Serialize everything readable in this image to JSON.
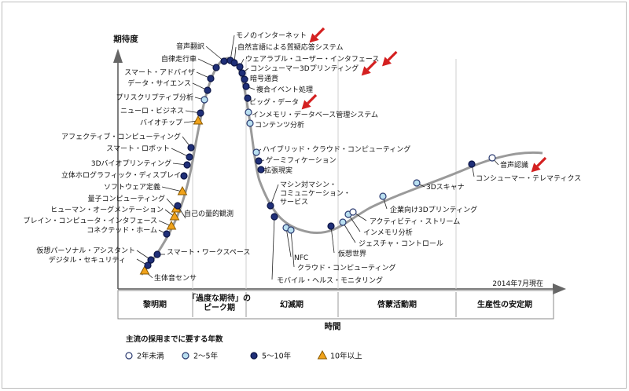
{
  "chart_data": {
    "type": "scatter",
    "title": "",
    "ylabel": "期待度",
    "xlabel": "時間",
    "date_note": "2014年7月現在",
    "phases": [
      "黎明期",
      "「過度な期待」の\nピーク期",
      "幻滅期",
      "啓蒙活動期",
      "生産性の安定期"
    ],
    "legend": {
      "title": "主流の採用までに要する年数",
      "items": [
        {
          "key": "w",
          "label": "2年未満"
        },
        {
          "key": "lb",
          "label": "2〜5年"
        },
        {
          "key": "db",
          "label": "5〜10年"
        },
        {
          "key": "tri",
          "label": "10年以上"
        }
      ]
    },
    "colors": {
      "curve": "#9a9a9a",
      "dark_blue": "#1f2f78",
      "light_blue": "#b9dff0",
      "triangle": "#f0a21a",
      "arrow": "#d42020"
    },
    "points": [
      {
        "label": "生体音センサ",
        "t": "tri",
        "arrow": false
      },
      {
        "label": "デジタル・セキュリティ",
        "t": "db",
        "arrow": false
      },
      {
        "label": "仮想パーソナル・アシスタント",
        "t": "db",
        "arrow": false
      },
      {
        "label": "スマート・ワークスペース",
        "t": "db",
        "arrow": false
      },
      {
        "label": "コネクテッド・ホーム",
        "t": "db",
        "arrow": false
      },
      {
        "label": "ブレイン・コンピュータ・インタフェース",
        "t": "tri",
        "arrow": false
      },
      {
        "label": "ヒューマン・オーグメンテーション",
        "t": "tri",
        "arrow": false
      },
      {
        "label": "量子コンピューティング",
        "t": "tri",
        "arrow": false
      },
      {
        "label": "自己の量的観測",
        "t": "db",
        "arrow": false
      },
      {
        "label": "ソフトウェア定義",
        "t": "tri",
        "arrow": false
      },
      {
        "label": "立体ホログラフィック・ディスプレイ",
        "t": "db",
        "arrow": false
      },
      {
        "label": "3Dバイオプリンティング",
        "t": "db",
        "arrow": false
      },
      {
        "label": "スマート・ロボット",
        "t": "db",
        "arrow": false
      },
      {
        "label": "アフェクティブ・コンピューティング",
        "t": "db",
        "arrow": false
      },
      {
        "label": "バイオチップ",
        "t": "tri",
        "arrow": false
      },
      {
        "label": "ニューロ・ビジネス",
        "t": "db",
        "arrow": false
      },
      {
        "label": "プリスクリプティブ分析",
        "t": "lb",
        "arrow": false
      },
      {
        "label": "データ・サイエンス",
        "t": "db",
        "arrow": false
      },
      {
        "label": "スマート・アドバイザ",
        "t": "db",
        "arrow": false
      },
      {
        "label": "自律走行車",
        "t": "db",
        "arrow": false
      },
      {
        "label": "音声翻訳",
        "t": "db",
        "arrow": false
      },
      {
        "label": "モノのインターネット",
        "t": "db",
        "arrow": true
      },
      {
        "label": "自然言語による質疑応答システム",
        "t": "db",
        "arrow": false
      },
      {
        "label": "ウェアラブル・ユーザー・インタフェース",
        "t": "db",
        "arrow": true
      },
      {
        "label": "コンシューマー3Dプリンティング",
        "t": "db",
        "arrow": true
      },
      {
        "label": "暗号通貨",
        "t": "db",
        "arrow": false
      },
      {
        "label": "複合イベント処理",
        "t": "db",
        "arrow": false
      },
      {
        "label": "ビッグ・データ",
        "t": "db",
        "arrow": true
      },
      {
        "label": "インメモリ・データベース管理システム",
        "t": "lb",
        "arrow": false
      },
      {
        "label": "コンテンツ分析",
        "t": "lb",
        "arrow": false
      },
      {
        "label": "ハイブリッド・クラウド・コンピューティング",
        "t": "lb",
        "arrow": false
      },
      {
        "label": "ゲーミフィケーション",
        "t": "db",
        "arrow": false
      },
      {
        "label": "拡張現実",
        "t": "db",
        "arrow": false
      },
      {
        "label": "マシン対マシン・コミュニケーション・サービス",
        "t": "db",
        "arrow": false
      },
      {
        "label": "モバイル・ヘルス・モニタリング",
        "t": "db",
        "arrow": false
      },
      {
        "label": "NFC",
        "t": "lb",
        "arrow": false
      },
      {
        "label": "クラウド・コンピューティング",
        "t": "lb",
        "arrow": false
      },
      {
        "label": "仮想世界",
        "t": "db",
        "arrow": false
      },
      {
        "label": "ジェスチャ・コントロール",
        "t": "lb",
        "arrow": false
      },
      {
        "label": "インメモリ分析",
        "t": "lb",
        "arrow": false
      },
      {
        "label": "アクティビティ・ストリーム",
        "t": "w",
        "arrow": false
      },
      {
        "label": "企業向け3Dプリンティング",
        "t": "lb",
        "arrow": false
      },
      {
        "label": "3Dスキャナ",
        "t": "lb",
        "arrow": false
      },
      {
        "label": "コンシューマー・テレマティクス",
        "t": "db",
        "arrow": false
      },
      {
        "label": "音声認識",
        "t": "w",
        "arrow": true
      }
    ]
  }
}
